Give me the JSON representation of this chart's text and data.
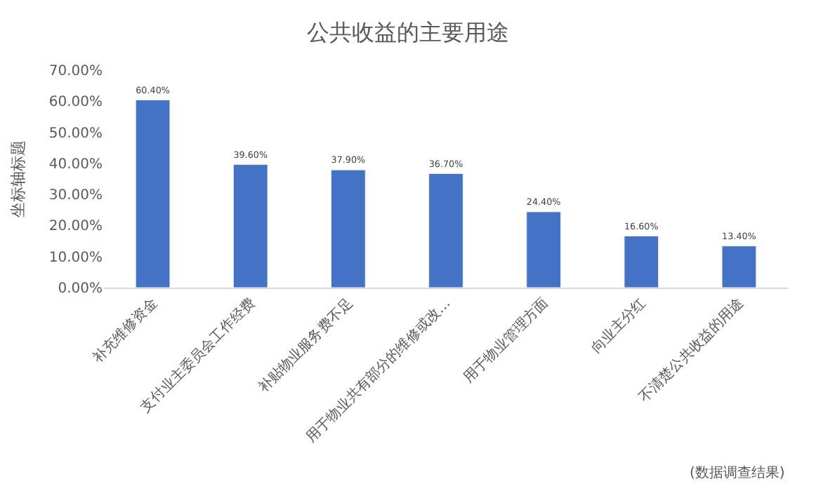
{
  "chart_data": {
    "type": "bar",
    "title": "公共收益的主要用途",
    "ylabel": "坐标轴标题",
    "categories": [
      "补充维修资金",
      "支付业主委员会工作经费",
      "补贴物业服务费不足",
      "用于物业共有部分的维修或改…",
      "用于物业管理方面",
      "向业主分红",
      "不清楚公共收益的用途"
    ],
    "values": [
      60.4,
      39.6,
      37.9,
      36.7,
      24.4,
      16.6,
      13.4
    ],
    "value_labels": [
      "60.40%",
      "39.60%",
      "37.90%",
      "36.70%",
      "24.40%",
      "16.60%",
      "13.40%"
    ],
    "color": "#4472c4",
    "ylim": [
      0,
      70
    ],
    "yticks": [
      {
        "value": 0,
        "label": "0.00%"
      },
      {
        "value": 10,
        "label": "10.00%"
      },
      {
        "value": 20,
        "label": "20.00%"
      },
      {
        "value": 30,
        "label": "30.00%"
      },
      {
        "value": 40,
        "label": "40.00%"
      },
      {
        "value": 50,
        "label": "50.00%"
      },
      {
        "value": 60,
        "label": "60.00%"
      },
      {
        "value": 70,
        "label": "70.00%"
      }
    ],
    "annotations": [
      "(数据调查结果)"
    ]
  }
}
